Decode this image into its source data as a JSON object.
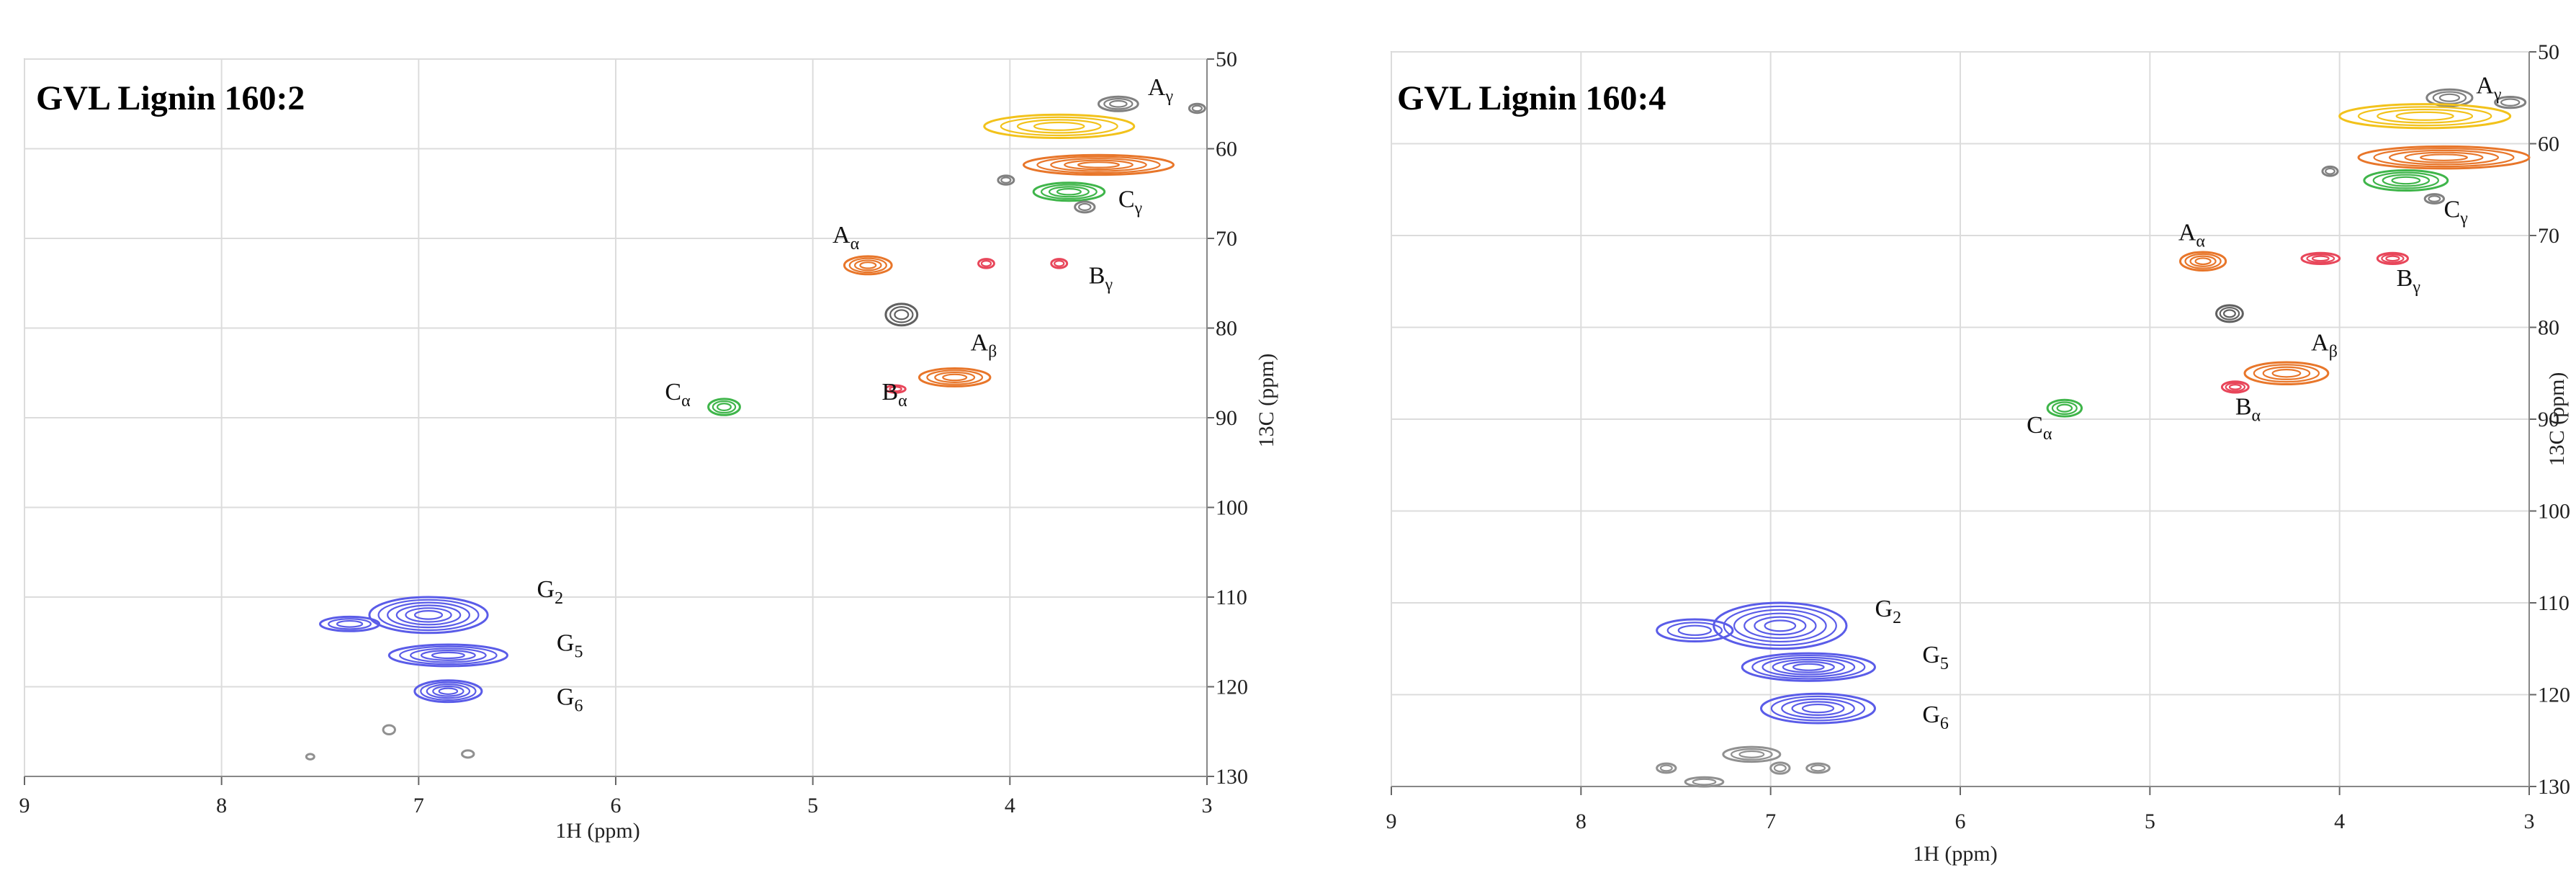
{
  "chart_data": [
    {
      "type": "scatter",
      "title": "GVL Lignin 160:2",
      "xlabel": "1H (ppm)",
      "ylabel": "13C (ppm)",
      "xlim": [
        9,
        3
      ],
      "ylim": [
        50,
        130
      ],
      "xticks": [
        "9",
        "8",
        "7",
        "6",
        "5",
        "4",
        "3"
      ],
      "yticks": [
        "50",
        "60",
        "70",
        "80",
        "90",
        "100",
        "110",
        "120",
        "130"
      ],
      "grid": true,
      "peaks": [
        {
          "label": "Aγ",
          "label_x": 3.3,
          "label_y": 54.0,
          "ring_color": "#ffffff",
          "stroke": "#808080",
          "x": 3.45,
          "y": 55.0,
          "rx": 0.1,
          "ry": 0.8,
          "rings": 3
        },
        {
          "label": "",
          "label_x": 0,
          "label_y": 0,
          "ring_color": "#ffffff",
          "stroke": "#808080",
          "x": 3.05,
          "y": 55.5,
          "rx": 0.04,
          "ry": 0.5,
          "rings": 2
        },
        {
          "label": "",
          "label_x": 0,
          "label_y": 0,
          "ring_color": "#ffffff",
          "stroke": "#f2c21b",
          "x": 3.75,
          "y": 57.5,
          "rx": 0.38,
          "ry": 1.3,
          "rings": 4
        },
        {
          "label": "",
          "label_x": 0,
          "label_y": 0,
          "ring_color": "#ffffff",
          "stroke": "#e8762a",
          "x": 3.55,
          "y": 61.8,
          "rx": 0.38,
          "ry": 1.1,
          "rings": 5
        },
        {
          "label": "",
          "label_x": 0,
          "label_y": 0,
          "ring_color": "#ffffff",
          "stroke": "#808080",
          "x": 4.02,
          "y": 63.5,
          "rx": 0.04,
          "ry": 0.5,
          "rings": 2
        },
        {
          "label": "",
          "label_x": 0,
          "label_y": 0,
          "ring_color": "#ffffff",
          "stroke": "#3fb54a",
          "x": 3.7,
          "y": 64.8,
          "rx": 0.18,
          "ry": 1.0,
          "rings": 4
        },
        {
          "label": "Cγ",
          "label_x": 3.45,
          "label_y": 66.5,
          "ring_color": "#ffffff",
          "stroke": "#808080",
          "x": 3.62,
          "y": 66.5,
          "rx": 0.05,
          "ry": 0.6,
          "rings": 2
        },
        {
          "label": "Aα",
          "label_x": 4.9,
          "label_y": 70.5,
          "ring_color": "#ffffff",
          "stroke": "#e8762a",
          "x": 4.72,
          "y": 73.0,
          "rx": 0.12,
          "ry": 1.0,
          "rings": 4
        },
        {
          "label": "",
          "label_x": 0,
          "label_y": 0,
          "ring_color": "#ffffff",
          "stroke": "#e8465a",
          "x": 4.12,
          "y": 72.8,
          "rx": 0.04,
          "ry": 0.5,
          "rings": 2
        },
        {
          "label": "Bγ",
          "label_x": 3.6,
          "label_y": 75.0,
          "ring_color": "#ffffff",
          "stroke": "#e8465a",
          "x": 3.75,
          "y": 72.8,
          "rx": 0.04,
          "ry": 0.5,
          "rings": 2
        },
        {
          "label": "",
          "label_x": 0,
          "label_y": 0,
          "ring_color": "#ffffff",
          "stroke": "#606060",
          "x": 4.55,
          "y": 78.5,
          "rx": 0.08,
          "ry": 1.2,
          "rings": 3
        },
        {
          "label": "Aβ",
          "label_x": 4.2,
          "label_y": 82.5,
          "ring_color": "#ffffff",
          "stroke": "#e8762a",
          "x": 4.28,
          "y": 85.5,
          "rx": 0.18,
          "ry": 1.0,
          "rings": 4
        },
        {
          "label": "Bα",
          "label_x": 4.65,
          "label_y": 88.0,
          "ring_color": "#ffffff",
          "stroke": "#e8465a",
          "x": 4.58,
          "y": 86.8,
          "rx": 0.05,
          "ry": 0.4,
          "rings": 2
        },
        {
          "label": "Cα",
          "label_x": 5.75,
          "label_y": 88.0,
          "ring_color": "#ffffff",
          "stroke": "#3fb54a",
          "x": 5.45,
          "y": 88.8,
          "rx": 0.08,
          "ry": 0.9,
          "rings": 3
        },
        {
          "label": "G2",
          "label_x": 6.4,
          "label_y": 110.0,
          "ring_color": "#ffffff",
          "stroke": "#5a5ce8",
          "x": 6.95,
          "y": 112.0,
          "rx": 0.3,
          "ry": 2.0,
          "rings": 6
        },
        {
          "label": "",
          "label_x": 0,
          "label_y": 0,
          "ring_color": "#ffffff",
          "stroke": "#5a5ce8",
          "x": 7.35,
          "y": 113.0,
          "rx": 0.15,
          "ry": 0.8,
          "rings": 3
        },
        {
          "label": "G5",
          "label_x": 6.3,
          "label_y": 116.0,
          "ring_color": "#ffffff",
          "stroke": "#5a5ce8",
          "x": 6.85,
          "y": 116.5,
          "rx": 0.3,
          "ry": 1.2,
          "rings": 5
        },
        {
          "label": "G6",
          "label_x": 6.3,
          "label_y": 122.0,
          "ring_color": "#ffffff",
          "stroke": "#5a5ce8",
          "x": 6.85,
          "y": 120.5,
          "rx": 0.17,
          "ry": 1.2,
          "rings": 5
        },
        {
          "label": "",
          "label_x": 0,
          "label_y": 0,
          "ring_color": "#ffffff",
          "stroke": "#909090",
          "x": 7.15,
          "y": 124.8,
          "rx": 0.03,
          "ry": 0.5,
          "rings": 1
        },
        {
          "label": "",
          "label_x": 0,
          "label_y": 0,
          "ring_color": "#ffffff",
          "stroke": "#909090",
          "x": 6.75,
          "y": 127.5,
          "rx": 0.03,
          "ry": 0.4,
          "rings": 1
        },
        {
          "label": "",
          "label_x": 0,
          "label_y": 0,
          "ring_color": "#ffffff",
          "stroke": "#909090",
          "x": 7.55,
          "y": 127.8,
          "rx": 0.02,
          "ry": 0.3,
          "rings": 1
        }
      ]
    },
    {
      "type": "scatter",
      "title": "GVL Lignin 160:4",
      "xlabel": "1H (ppm)",
      "ylabel": "13C (ppm)",
      "xlim": [
        9,
        3
      ],
      "ylim": [
        50,
        130
      ],
      "xticks": [
        "9",
        "8",
        "7",
        "6",
        "5",
        "4",
        "3"
      ],
      "yticks": [
        "50",
        "60",
        "70",
        "80",
        "90",
        "100",
        "110",
        "120",
        "130"
      ],
      "grid": true,
      "peaks": [
        {
          "label": "Aγ",
          "label_x": 3.28,
          "label_y": 54.5,
          "ring_color": "#ffffff",
          "stroke": "#808080",
          "x": 3.42,
          "y": 55.0,
          "rx": 0.12,
          "ry": 0.9,
          "rings": 3
        },
        {
          "label": "",
          "label_x": 0,
          "label_y": 0,
          "ring_color": "#ffffff",
          "stroke": "#808080",
          "x": 3.1,
          "y": 55.5,
          "rx": 0.08,
          "ry": 0.6,
          "rings": 2
        },
        {
          "label": "",
          "label_x": 0,
          "label_y": 0,
          "ring_color": "#ffffff",
          "stroke": "#f2c21b",
          "x": 3.55,
          "y": 57.0,
          "rx": 0.45,
          "ry": 1.3,
          "rings": 4
        },
        {
          "label": "",
          "label_x": 0,
          "label_y": 0,
          "ring_color": "#ffffff",
          "stroke": "#e8762a",
          "x": 3.45,
          "y": 61.5,
          "rx": 0.45,
          "ry": 1.2,
          "rings": 5
        },
        {
          "label": "",
          "label_x": 0,
          "label_y": 0,
          "ring_color": "#ffffff",
          "stroke": "#808080",
          "x": 4.05,
          "y": 63.0,
          "rx": 0.04,
          "ry": 0.5,
          "rings": 2
        },
        {
          "label": "Cγ",
          "label_x": 3.45,
          "label_y": 68.0,
          "ring_color": "#ffffff",
          "stroke": "#3fb54a",
          "x": 3.65,
          "y": 64.0,
          "rx": 0.22,
          "ry": 1.1,
          "rings": 4
        },
        {
          "label": "",
          "label_x": 0,
          "label_y": 0,
          "ring_color": "#ffffff",
          "stroke": "#808080",
          "x": 3.5,
          "y": 66.0,
          "rx": 0.05,
          "ry": 0.5,
          "rings": 2
        },
        {
          "label": "Aα",
          "label_x": 4.85,
          "label_y": 70.5,
          "ring_color": "#ffffff",
          "stroke": "#e8762a",
          "x": 4.72,
          "y": 72.8,
          "rx": 0.12,
          "ry": 1.0,
          "rings": 4
        },
        {
          "label": "",
          "label_x": 0,
          "label_y": 0,
          "ring_color": "#ffffff",
          "stroke": "#e8465a",
          "x": 4.1,
          "y": 72.5,
          "rx": 0.1,
          "ry": 0.6,
          "rings": 3
        },
        {
          "label": "Bγ",
          "label_x": 3.7,
          "label_y": 75.5,
          "ring_color": "#ffffff",
          "stroke": "#e8465a",
          "x": 3.72,
          "y": 72.5,
          "rx": 0.08,
          "ry": 0.6,
          "rings": 3
        },
        {
          "label": "",
          "label_x": 0,
          "label_y": 0,
          "ring_color": "#ffffff",
          "stroke": "#606060",
          "x": 4.58,
          "y": 78.5,
          "rx": 0.07,
          "ry": 0.9,
          "rings": 3
        },
        {
          "label": "Aβ",
          "label_x": 4.15,
          "label_y": 82.5,
          "ring_color": "#ffffff",
          "stroke": "#e8762a",
          "x": 4.28,
          "y": 85.0,
          "rx": 0.22,
          "ry": 1.2,
          "rings": 4
        },
        {
          "label": "Bα",
          "label_x": 4.55,
          "label_y": 89.5,
          "ring_color": "#ffffff",
          "stroke": "#e8465a",
          "x": 4.55,
          "y": 86.5,
          "rx": 0.07,
          "ry": 0.6,
          "rings": 3
        },
        {
          "label": "Cα",
          "label_x": 5.65,
          "label_y": 91.5,
          "ring_color": "#ffffff",
          "stroke": "#3fb54a",
          "x": 5.45,
          "y": 88.8,
          "rx": 0.09,
          "ry": 0.9,
          "rings": 3
        },
        {
          "label": "G2",
          "label_x": 6.45,
          "label_y": 111.5,
          "ring_color": "#ffffff",
          "stroke": "#5a5ce8",
          "x": 6.95,
          "y": 112.5,
          "rx": 0.35,
          "ry": 2.5,
          "rings": 6
        },
        {
          "label": "",
          "label_x": 0,
          "label_y": 0,
          "ring_color": "#ffffff",
          "stroke": "#5a5ce8",
          "x": 7.4,
          "y": 113.0,
          "rx": 0.2,
          "ry": 1.2,
          "rings": 3
        },
        {
          "label": "G5",
          "label_x": 6.2,
          "label_y": 116.5,
          "ring_color": "#ffffff",
          "stroke": "#5a5ce8",
          "x": 6.8,
          "y": 117.0,
          "rx": 0.35,
          "ry": 1.5,
          "rings": 6
        },
        {
          "label": "G6",
          "label_x": 6.2,
          "label_y": 123.0,
          "ring_color": "#ffffff",
          "stroke": "#5a5ce8",
          "x": 6.75,
          "y": 121.5,
          "rx": 0.3,
          "ry": 1.6,
          "rings": 5
        },
        {
          "label": "",
          "label_x": 0,
          "label_y": 0,
          "ring_color": "#ffffff",
          "stroke": "#909090",
          "x": 7.1,
          "y": 126.5,
          "rx": 0.15,
          "ry": 0.8,
          "rings": 3
        },
        {
          "label": "",
          "label_x": 0,
          "label_y": 0,
          "ring_color": "#ffffff",
          "stroke": "#909090",
          "x": 6.75,
          "y": 128.0,
          "rx": 0.06,
          "ry": 0.5,
          "rings": 2
        },
        {
          "label": "",
          "label_x": 0,
          "label_y": 0,
          "ring_color": "#ffffff",
          "stroke": "#909090",
          "x": 7.55,
          "y": 128.0,
          "rx": 0.05,
          "ry": 0.5,
          "rings": 2
        },
        {
          "label": "",
          "label_x": 0,
          "label_y": 0,
          "ring_color": "#ffffff",
          "stroke": "#909090",
          "x": 7.35,
          "y": 129.5,
          "rx": 0.1,
          "ry": 0.5,
          "rings": 2
        },
        {
          "label": "",
          "label_x": 0,
          "label_y": 0,
          "ring_color": "#ffffff",
          "stroke": "#909090",
          "x": 6.95,
          "y": 128.0,
          "rx": 0.05,
          "ry": 0.6,
          "rings": 2
        }
      ]
    }
  ]
}
